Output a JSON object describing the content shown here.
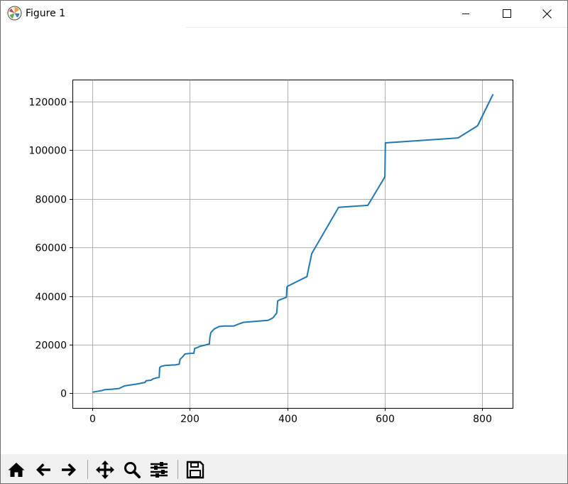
{
  "window": {
    "title": "Figure 1"
  },
  "icons": {
    "app": "matplotlib-logo-icon",
    "minimize": "minimize-icon",
    "maximize": "maximize-icon",
    "close": "close-icon"
  },
  "toolbar": {
    "buttons": [
      "home-icon",
      "back-arrow-icon",
      "forward-arrow-icon",
      "pan-move-icon",
      "zoom-magnifier-icon",
      "configure-subplots-icon",
      "save-floppy-icon"
    ]
  },
  "colors": {
    "line": "#1f77b4",
    "grid": "#b0b0b0"
  },
  "chart_data": {
    "type": "line",
    "title": "",
    "xlabel": "",
    "ylabel": "",
    "xlim": [
      -41,
      862
    ],
    "ylim": [
      -6000,
      129000
    ],
    "grid": true,
    "x_ticks": [
      0,
      200,
      400,
      600,
      800
    ],
    "y_ticks": [
      0,
      20000,
      40000,
      60000,
      80000,
      100000,
      120000
    ],
    "x_tick_labels": [
      "0",
      "200",
      "400",
      "600",
      "800"
    ],
    "y_tick_labels": [
      "0",
      "20000",
      "40000",
      "60000",
      "80000",
      "100000",
      "120000"
    ],
    "series": [
      {
        "x": [
          0,
          10,
          20,
          25,
          40,
          55,
          60,
          65,
          70,
          80,
          90,
          100,
          108,
          110,
          120,
          125,
          130,
          137,
          138,
          140,
          145,
          150,
          170,
          178,
          180,
          185,
          190,
          200,
          208,
          210,
          215,
          220,
          240,
          241,
          243,
          250,
          260,
          270,
          290,
          300,
          310,
          360,
          370,
          378,
          380,
          385,
          398,
          399,
          400,
          440,
          450,
          505,
          565,
          600,
          601,
          750,
          790,
          822
        ],
        "y": [
          500,
          800,
          1200,
          1500,
          1700,
          2000,
          2500,
          3000,
          3200,
          3500,
          3800,
          4200,
          4500,
          5200,
          5400,
          6000,
          6300,
          6600,
          10500,
          11000,
          11300,
          11500,
          11700,
          12000,
          14000,
          15000,
          16200,
          16400,
          16500,
          18500,
          18800,
          19300,
          20300,
          23000,
          25000,
          26500,
          27500,
          27700,
          27700,
          28500,
          29200,
          30000,
          31000,
          33000,
          38000,
          38500,
          39500,
          43500,
          44000,
          48000,
          57500,
          76500,
          77300,
          89000,
          103000,
          105000,
          110000,
          123000
        ]
      }
    ]
  }
}
